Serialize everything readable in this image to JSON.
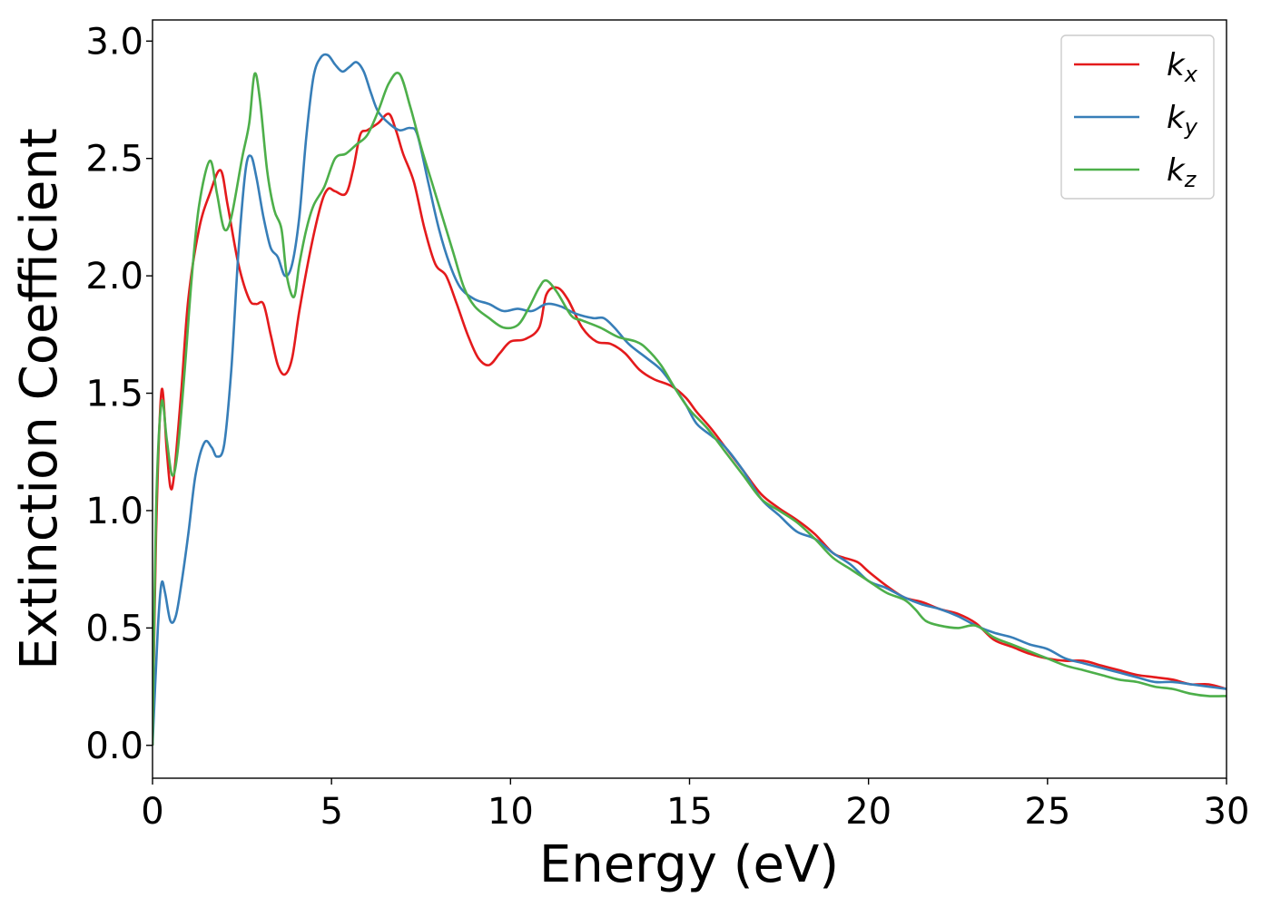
{
  "chart_data": {
    "type": "line",
    "title": "",
    "xlabel": "Energy (eV)",
    "ylabel": "Extinction Coefficient",
    "xlim": [
      0,
      30
    ],
    "ylim": [
      -0.14,
      3.09
    ],
    "xticks": [
      0,
      5,
      10,
      15,
      20,
      25,
      30
    ],
    "xtick_labels": [
      "0",
      "5",
      "10",
      "15",
      "20",
      "25",
      "30"
    ],
    "yticks": [
      0.0,
      0.5,
      1.0,
      1.5,
      2.0,
      2.5,
      3.0
    ],
    "ytick_labels": [
      "0.0",
      "0.5",
      "1.0",
      "1.5",
      "2.0",
      "2.5",
      "3.0"
    ],
    "grid": false,
    "legend_position": "top-right",
    "series": [
      {
        "name": "k",
        "subscript": "x",
        "color": "#e41a1c",
        "points": [
          [
            0,
            0
          ],
          [
            0.1,
            0.9
          ],
          [
            0.25,
            1.51
          ],
          [
            0.4,
            1.25
          ],
          [
            0.5,
            1.1
          ],
          [
            0.6,
            1.15
          ],
          [
            0.8,
            1.5
          ],
          [
            1.0,
            1.9
          ],
          [
            1.3,
            2.2
          ],
          [
            1.6,
            2.35
          ],
          [
            1.9,
            2.45
          ],
          [
            2.1,
            2.3
          ],
          [
            2.4,
            2.05
          ],
          [
            2.7,
            1.9
          ],
          [
            2.9,
            1.88
          ],
          [
            3.1,
            1.88
          ],
          [
            3.3,
            1.75
          ],
          [
            3.5,
            1.62
          ],
          [
            3.7,
            1.58
          ],
          [
            3.9,
            1.65
          ],
          [
            4.1,
            1.85
          ],
          [
            4.4,
            2.1
          ],
          [
            4.7,
            2.3
          ],
          [
            4.9,
            2.37
          ],
          [
            5.1,
            2.36
          ],
          [
            5.4,
            2.35
          ],
          [
            5.6,
            2.45
          ],
          [
            5.8,
            2.6
          ],
          [
            6.0,
            2.62
          ],
          [
            6.3,
            2.65
          ],
          [
            6.6,
            2.69
          ],
          [
            6.8,
            2.62
          ],
          [
            7.0,
            2.52
          ],
          [
            7.3,
            2.4
          ],
          [
            7.6,
            2.2
          ],
          [
            7.9,
            2.05
          ],
          [
            8.2,
            2.0
          ],
          [
            8.5,
            1.88
          ],
          [
            8.8,
            1.75
          ],
          [
            9.1,
            1.65
          ],
          [
            9.4,
            1.62
          ],
          [
            9.7,
            1.67
          ],
          [
            10.0,
            1.72
          ],
          [
            10.4,
            1.73
          ],
          [
            10.8,
            1.78
          ],
          [
            11.0,
            1.92
          ],
          [
            11.3,
            1.95
          ],
          [
            11.6,
            1.9
          ],
          [
            12.0,
            1.78
          ],
          [
            12.4,
            1.72
          ],
          [
            12.8,
            1.71
          ],
          [
            13.2,
            1.67
          ],
          [
            13.6,
            1.6
          ],
          [
            14.0,
            1.56
          ],
          [
            14.5,
            1.53
          ],
          [
            14.9,
            1.48
          ],
          [
            15.2,
            1.42
          ],
          [
            15.6,
            1.35
          ],
          [
            16.0,
            1.27
          ],
          [
            16.5,
            1.17
          ],
          [
            17.0,
            1.07
          ],
          [
            17.5,
            1.01
          ],
          [
            18.0,
            0.96
          ],
          [
            18.5,
            0.9
          ],
          [
            19.0,
            0.82
          ],
          [
            19.3,
            0.8
          ],
          [
            19.7,
            0.78
          ],
          [
            20.0,
            0.74
          ],
          [
            20.5,
            0.68
          ],
          [
            21.0,
            0.63
          ],
          [
            21.5,
            0.61
          ],
          [
            22.0,
            0.58
          ],
          [
            22.5,
            0.56
          ],
          [
            23.0,
            0.52
          ],
          [
            23.5,
            0.45
          ],
          [
            24.0,
            0.42
          ],
          [
            24.5,
            0.39
          ],
          [
            25.0,
            0.37
          ],
          [
            25.5,
            0.36
          ],
          [
            26.0,
            0.36
          ],
          [
            26.5,
            0.34
          ],
          [
            27.0,
            0.32
          ],
          [
            27.5,
            0.3
          ],
          [
            28.0,
            0.29
          ],
          [
            28.5,
            0.28
          ],
          [
            29.0,
            0.26
          ],
          [
            29.5,
            0.26
          ],
          [
            30.0,
            0.24
          ]
        ]
      },
      {
        "name": "k",
        "subscript": "y",
        "color": "#377eb8",
        "points": [
          [
            0,
            0
          ],
          [
            0.15,
            0.5
          ],
          [
            0.25,
            0.69
          ],
          [
            0.35,
            0.65
          ],
          [
            0.5,
            0.53
          ],
          [
            0.65,
            0.55
          ],
          [
            0.8,
            0.68
          ],
          [
            1.0,
            0.9
          ],
          [
            1.2,
            1.15
          ],
          [
            1.45,
            1.29
          ],
          [
            1.65,
            1.27
          ],
          [
            1.8,
            1.23
          ],
          [
            2.0,
            1.28
          ],
          [
            2.2,
            1.6
          ],
          [
            2.4,
            2.1
          ],
          [
            2.6,
            2.45
          ],
          [
            2.75,
            2.51
          ],
          [
            2.9,
            2.42
          ],
          [
            3.1,
            2.25
          ],
          [
            3.3,
            2.12
          ],
          [
            3.5,
            2.08
          ],
          [
            3.7,
            2.0
          ],
          [
            3.9,
            2.05
          ],
          [
            4.1,
            2.25
          ],
          [
            4.3,
            2.6
          ],
          [
            4.5,
            2.85
          ],
          [
            4.7,
            2.93
          ],
          [
            4.9,
            2.94
          ],
          [
            5.1,
            2.9
          ],
          [
            5.3,
            2.87
          ],
          [
            5.5,
            2.89
          ],
          [
            5.7,
            2.91
          ],
          [
            5.9,
            2.87
          ],
          [
            6.1,
            2.78
          ],
          [
            6.3,
            2.7
          ],
          [
            6.6,
            2.65
          ],
          [
            6.9,
            2.62
          ],
          [
            7.2,
            2.63
          ],
          [
            7.4,
            2.6
          ],
          [
            7.7,
            2.4
          ],
          [
            8.0,
            2.2
          ],
          [
            8.3,
            2.05
          ],
          [
            8.6,
            1.95
          ],
          [
            9.0,
            1.9
          ],
          [
            9.4,
            1.88
          ],
          [
            9.8,
            1.85
          ],
          [
            10.2,
            1.86
          ],
          [
            10.6,
            1.85
          ],
          [
            11.0,
            1.88
          ],
          [
            11.4,
            1.87
          ],
          [
            11.8,
            1.84
          ],
          [
            12.3,
            1.82
          ],
          [
            12.6,
            1.82
          ],
          [
            12.9,
            1.78
          ],
          [
            13.3,
            1.71
          ],
          [
            13.8,
            1.65
          ],
          [
            14.2,
            1.6
          ],
          [
            14.6,
            1.52
          ],
          [
            14.9,
            1.45
          ],
          [
            15.2,
            1.37
          ],
          [
            15.6,
            1.32
          ],
          [
            16.0,
            1.27
          ],
          [
            16.5,
            1.17
          ],
          [
            17.0,
            1.05
          ],
          [
            17.5,
            0.98
          ],
          [
            18.0,
            0.91
          ],
          [
            18.5,
            0.88
          ],
          [
            19.0,
            0.82
          ],
          [
            19.5,
            0.77
          ],
          [
            20.0,
            0.7
          ],
          [
            20.5,
            0.67
          ],
          [
            21.0,
            0.63
          ],
          [
            21.5,
            0.6
          ],
          [
            22.0,
            0.58
          ],
          [
            22.5,
            0.55
          ],
          [
            23.0,
            0.51
          ],
          [
            23.5,
            0.48
          ],
          [
            24.0,
            0.46
          ],
          [
            24.5,
            0.43
          ],
          [
            25.0,
            0.41
          ],
          [
            25.5,
            0.37
          ],
          [
            26.0,
            0.35
          ],
          [
            26.5,
            0.33
          ],
          [
            27.0,
            0.31
          ],
          [
            27.5,
            0.29
          ],
          [
            28.0,
            0.27
          ],
          [
            28.5,
            0.27
          ],
          [
            29.0,
            0.26
          ],
          [
            29.5,
            0.25
          ],
          [
            30.0,
            0.24
          ]
        ]
      },
      {
        "name": "k",
        "subscript": "z",
        "color": "#4daf4a",
        "points": [
          [
            0,
            0
          ],
          [
            0.1,
            1.0
          ],
          [
            0.25,
            1.46
          ],
          [
            0.4,
            1.3
          ],
          [
            0.55,
            1.15
          ],
          [
            0.7,
            1.25
          ],
          [
            0.9,
            1.6
          ],
          [
            1.1,
            2.0
          ],
          [
            1.3,
            2.3
          ],
          [
            1.6,
            2.49
          ],
          [
            1.8,
            2.35
          ],
          [
            2.0,
            2.2
          ],
          [
            2.2,
            2.25
          ],
          [
            2.5,
            2.5
          ],
          [
            2.7,
            2.65
          ],
          [
            2.85,
            2.86
          ],
          [
            3.0,
            2.75
          ],
          [
            3.2,
            2.45
          ],
          [
            3.4,
            2.28
          ],
          [
            3.6,
            2.2
          ],
          [
            3.75,
            2.0
          ],
          [
            3.95,
            1.91
          ],
          [
            4.1,
            2.05
          ],
          [
            4.3,
            2.2
          ],
          [
            4.5,
            2.3
          ],
          [
            4.8,
            2.38
          ],
          [
            5.1,
            2.5
          ],
          [
            5.4,
            2.52
          ],
          [
            5.7,
            2.56
          ],
          [
            6.0,
            2.6
          ],
          [
            6.3,
            2.7
          ],
          [
            6.6,
            2.82
          ],
          [
            6.9,
            2.86
          ],
          [
            7.2,
            2.72
          ],
          [
            7.5,
            2.55
          ],
          [
            7.8,
            2.4
          ],
          [
            8.1,
            2.25
          ],
          [
            8.4,
            2.1
          ],
          [
            8.7,
            1.95
          ],
          [
            9.0,
            1.87
          ],
          [
            9.4,
            1.82
          ],
          [
            9.8,
            1.78
          ],
          [
            10.2,
            1.79
          ],
          [
            10.5,
            1.86
          ],
          [
            10.8,
            1.95
          ],
          [
            11.0,
            1.98
          ],
          [
            11.3,
            1.93
          ],
          [
            11.7,
            1.83
          ],
          [
            12.0,
            1.81
          ],
          [
            12.5,
            1.78
          ],
          [
            13.0,
            1.74
          ],
          [
            13.5,
            1.72
          ],
          [
            13.8,
            1.69
          ],
          [
            14.2,
            1.62
          ],
          [
            14.6,
            1.52
          ],
          [
            15.0,
            1.43
          ],
          [
            15.5,
            1.35
          ],
          [
            16.0,
            1.25
          ],
          [
            16.5,
            1.15
          ],
          [
            17.0,
            1.05
          ],
          [
            17.5,
            1.0
          ],
          [
            18.0,
            0.95
          ],
          [
            18.5,
            0.88
          ],
          [
            19.0,
            0.8
          ],
          [
            19.5,
            0.75
          ],
          [
            20.0,
            0.7
          ],
          [
            20.5,
            0.65
          ],
          [
            21.0,
            0.62
          ],
          [
            21.3,
            0.58
          ],
          [
            21.6,
            0.53
          ],
          [
            22.0,
            0.51
          ],
          [
            22.5,
            0.5
          ],
          [
            23.0,
            0.51
          ],
          [
            23.5,
            0.46
          ],
          [
            24.0,
            0.43
          ],
          [
            24.5,
            0.4
          ],
          [
            25.0,
            0.37
          ],
          [
            25.5,
            0.34
          ],
          [
            26.0,
            0.32
          ],
          [
            26.5,
            0.3
          ],
          [
            27.0,
            0.28
          ],
          [
            27.5,
            0.27
          ],
          [
            28.0,
            0.25
          ],
          [
            28.5,
            0.24
          ],
          [
            29.0,
            0.22
          ],
          [
            29.5,
            0.21
          ],
          [
            30.0,
            0.21
          ]
        ]
      }
    ]
  }
}
